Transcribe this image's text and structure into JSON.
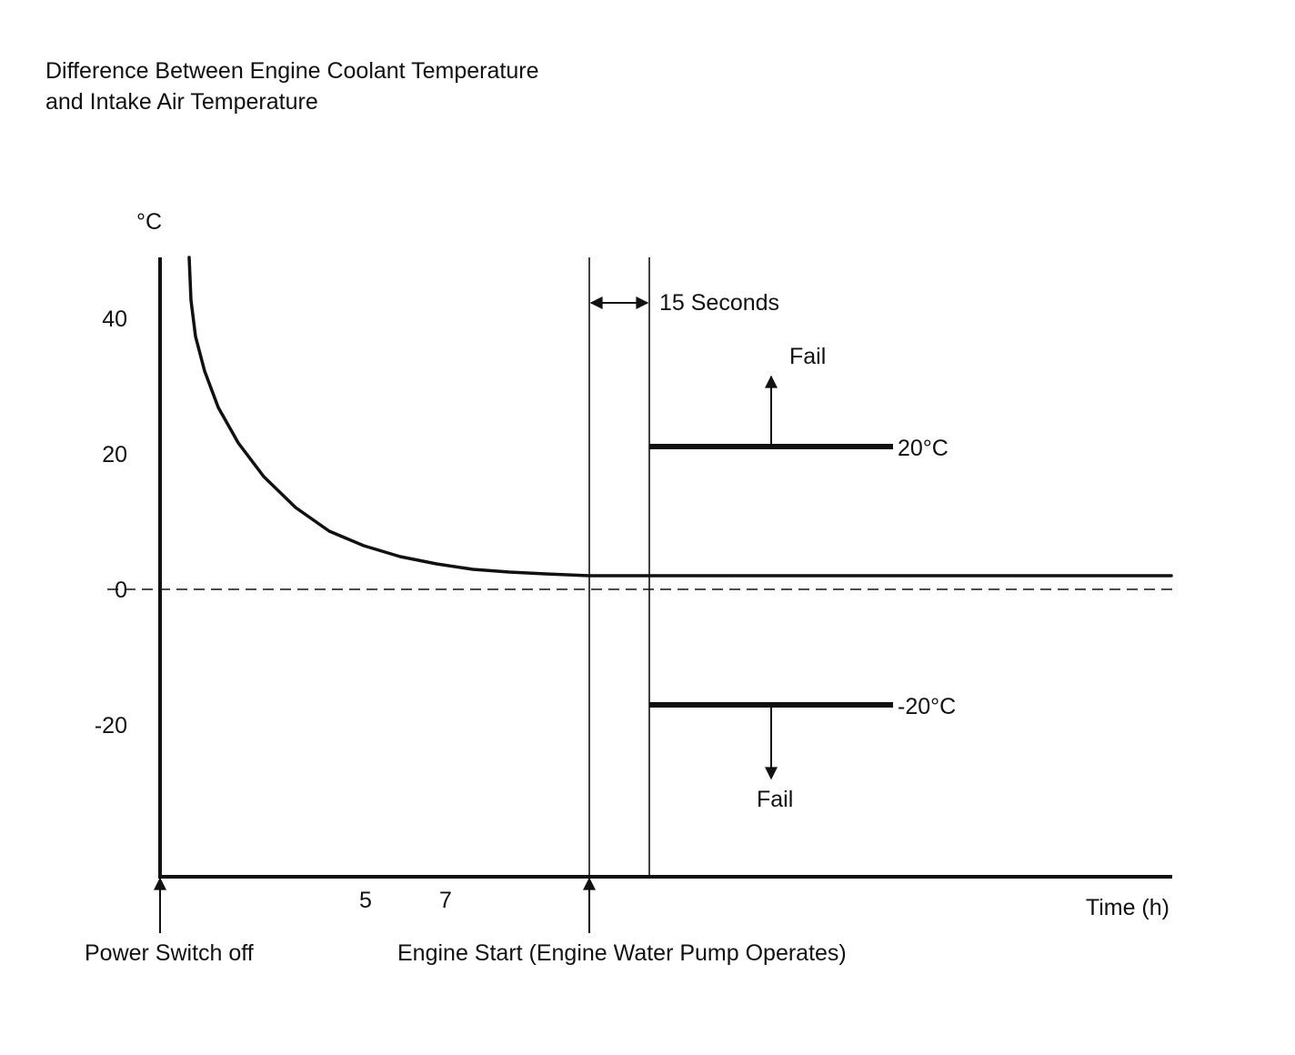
{
  "chart_data": {
    "type": "line",
    "title_lines": [
      "Difference Between Engine Coolant Temperature",
      "and Intake Air Temperature"
    ],
    "ylabel": "°C",
    "xlabel": "Time (h)",
    "ylim": [
      -38,
      45
    ],
    "xlim": [
      0,
      12.5
    ],
    "y_ticks": [
      {
        "value": 40,
        "label": "40"
      },
      {
        "value": 20,
        "label": "20"
      },
      {
        "value": 0,
        "label": "0"
      },
      {
        "value": -20,
        "label": "-20"
      }
    ],
    "x_ticks": [
      {
        "value": 5,
        "label": "5"
      },
      {
        "value": 7,
        "label": "7"
      }
    ],
    "zero_line_style": "dashed",
    "series": [
      {
        "x": [
          0.35,
          0.5,
          0.75,
          1.0,
          1.5,
          2.0,
          2.5,
          3.0,
          3.5,
          4.0,
          4.5,
          5.0,
          5.5,
          6.0,
          6.5,
          7.0,
          7.5,
          8.0,
          9.0,
          10.0,
          11.0,
          12.5
        ],
        "y": [
          46.0,
          37.0,
          28.0,
          22.5,
          16.0,
          12.2,
          9.5,
          7.4,
          5.9,
          4.7,
          3.8,
          3.2,
          2.7,
          2.3,
          2.1,
          2.0,
          2.0,
          2.0,
          2.0,
          2.0,
          2.0,
          2.0
        ]
      }
    ],
    "thresholds": [
      {
        "value": 20,
        "label": "20°C",
        "x_start": 6.0,
        "x_end": 9.0,
        "fail_label": "Fail",
        "fail_direction": "up"
      },
      {
        "value": -20,
        "label": "-20°C",
        "x_start": 6.0,
        "x_end": 9.0,
        "fail_label": "Fail",
        "fail_direction": "down"
      }
    ],
    "engine_start_x": 5.3,
    "delay_end_x": 6.0,
    "delay_label": "15 Seconds",
    "events": [
      {
        "x": 0,
        "label": "Power Switch off"
      },
      {
        "x": 5.3,
        "label": "Engine Start (Engine Water Pump Operates)"
      }
    ]
  }
}
